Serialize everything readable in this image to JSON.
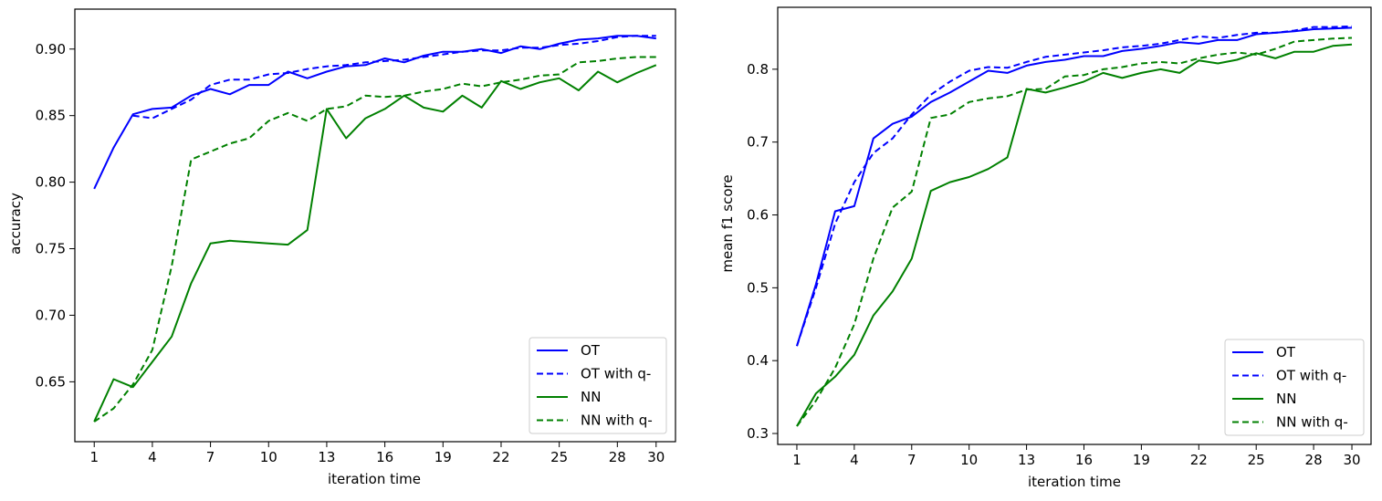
{
  "chart_data": [
    {
      "type": "line",
      "xlabel": "iteration time",
      "ylabel": "accuracy",
      "xlim": [
        0,
        31
      ],
      "ylim": [
        0.605,
        0.93
      ],
      "xticks": [
        1,
        4,
        7,
        10,
        13,
        16,
        19,
        22,
        25,
        28,
        30
      ],
      "yticks": [
        0.65,
        0.7,
        0.75,
        0.8,
        0.85,
        0.9
      ],
      "ytick_labels": [
        "0.65",
        "0.70",
        "0.75",
        "0.80",
        "0.85",
        "0.90"
      ],
      "legend_position": "lower-right",
      "grid": false,
      "x": [
        1,
        2,
        3,
        4,
        5,
        6,
        7,
        8,
        9,
        10,
        11,
        12,
        13,
        14,
        15,
        16,
        17,
        18,
        19,
        20,
        21,
        22,
        23,
        24,
        25,
        26,
        27,
        28,
        29,
        30
      ],
      "series": [
        {
          "name": "OT",
          "color": "#0000ff",
          "dash": "solid",
          "values": [
            0.795,
            0.826,
            0.851,
            0.855,
            0.856,
            0.865,
            0.87,
            0.866,
            0.873,
            0.873,
            0.883,
            0.878,
            0.883,
            0.887,
            0.888,
            0.893,
            0.89,
            0.895,
            0.898,
            0.898,
            0.9,
            0.897,
            0.902,
            0.9,
            0.904,
            0.907,
            0.908,
            0.91,
            0.91,
            0.908
          ]
        },
        {
          "name": "OT with q-",
          "color": "#0000ff",
          "dash": "dashed",
          "values": [
            null,
            null,
            0.85,
            0.848,
            0.855,
            0.862,
            0.873,
            0.877,
            0.877,
            0.881,
            0.882,
            0.885,
            0.887,
            0.888,
            0.89,
            0.891,
            0.892,
            0.894,
            0.896,
            0.898,
            0.899,
            0.899,
            0.901,
            0.901,
            0.903,
            0.904,
            0.906,
            0.909,
            0.91,
            0.91
          ]
        },
        {
          "name": "NN",
          "color": "#008000",
          "dash": "solid",
          "values": [
            0.62,
            0.652,
            0.646,
            0.665,
            0.684,
            0.724,
            0.754,
            0.756,
            0.755,
            0.754,
            0.753,
            0.764,
            0.855,
            0.833,
            0.848,
            0.855,
            0.865,
            0.856,
            0.853,
            0.865,
            0.856,
            0.876,
            0.87,
            0.875,
            0.878,
            0.869,
            0.883,
            0.875,
            0.882,
            0.888
          ]
        },
        {
          "name": "NN with q-",
          "color": "#008000",
          "dash": "dashed",
          "values": [
            0.62,
            0.63,
            0.648,
            0.674,
            0.737,
            0.817,
            0.823,
            0.829,
            0.833,
            0.846,
            0.852,
            0.846,
            0.855,
            0.857,
            0.865,
            0.864,
            0.865,
            0.868,
            0.87,
            0.874,
            0.872,
            0.875,
            0.877,
            0.88,
            0.881,
            0.89,
            0.891,
            0.893,
            0.894,
            0.894
          ]
        }
      ],
      "legend": [
        "OT",
        "OT with q-",
        "NN",
        "NN with q-"
      ]
    },
    {
      "type": "line",
      "xlabel": "iteration time",
      "ylabel": "mean f1 score",
      "xlim": [
        0,
        31
      ],
      "ylim": [
        0.285,
        0.885
      ],
      "xticks": [
        1,
        4,
        7,
        10,
        13,
        16,
        19,
        22,
        25,
        28,
        30
      ],
      "yticks": [
        0.3,
        0.4,
        0.5,
        0.6,
        0.7,
        0.8
      ],
      "ytick_labels": [
        "0.3",
        "0.4",
        "0.5",
        "0.6",
        "0.7",
        "0.8"
      ],
      "legend_position": "lower-right",
      "grid": false,
      "x": [
        1,
        2,
        3,
        4,
        5,
        6,
        7,
        8,
        9,
        10,
        11,
        12,
        13,
        14,
        15,
        16,
        17,
        18,
        19,
        20,
        21,
        22,
        23,
        24,
        25,
        26,
        27,
        28,
        29,
        30
      ],
      "series": [
        {
          "name": "OT",
          "color": "#0000ff",
          "dash": "solid",
          "values": [
            0.42,
            0.505,
            0.605,
            0.612,
            0.705,
            0.725,
            0.735,
            0.755,
            0.768,
            0.783,
            0.798,
            0.795,
            0.805,
            0.81,
            0.813,
            0.818,
            0.818,
            0.825,
            0.828,
            0.832,
            0.837,
            0.835,
            0.84,
            0.84,
            0.848,
            0.85,
            0.852,
            0.855,
            0.856,
            0.857
          ]
        },
        {
          "name": "OT with q-",
          "color": "#0000ff",
          "dash": "dashed",
          "values": [
            0.42,
            0.5,
            0.588,
            0.645,
            0.685,
            0.705,
            0.738,
            0.765,
            0.783,
            0.798,
            0.803,
            0.802,
            0.81,
            0.817,
            0.82,
            0.823,
            0.826,
            0.83,
            0.832,
            0.835,
            0.84,
            0.845,
            0.843,
            0.847,
            0.85,
            0.85,
            0.853,
            0.858,
            0.858,
            0.859
          ]
        },
        {
          "name": "NN",
          "color": "#008000",
          "dash": "solid",
          "values": [
            0.31,
            0.355,
            0.378,
            0.408,
            0.462,
            0.495,
            0.54,
            0.633,
            0.645,
            0.652,
            0.663,
            0.679,
            0.773,
            0.768,
            0.775,
            0.783,
            0.795,
            0.788,
            0.795,
            0.8,
            0.795,
            0.812,
            0.808,
            0.813,
            0.822,
            0.815,
            0.824,
            0.824,
            0.832,
            0.834
          ]
        },
        {
          "name": "NN with q-",
          "color": "#008000",
          "dash": "dashed",
          "values": [
            0.31,
            0.345,
            0.39,
            0.45,
            0.54,
            0.61,
            0.632,
            0.733,
            0.738,
            0.755,
            0.76,
            0.763,
            0.772,
            0.773,
            0.79,
            0.792,
            0.8,
            0.803,
            0.808,
            0.81,
            0.808,
            0.815,
            0.82,
            0.823,
            0.82,
            0.828,
            0.838,
            0.84,
            0.842,
            0.843
          ]
        }
      ],
      "legend": [
        "OT",
        "OT with q-",
        "NN",
        "NN with q-"
      ]
    }
  ]
}
